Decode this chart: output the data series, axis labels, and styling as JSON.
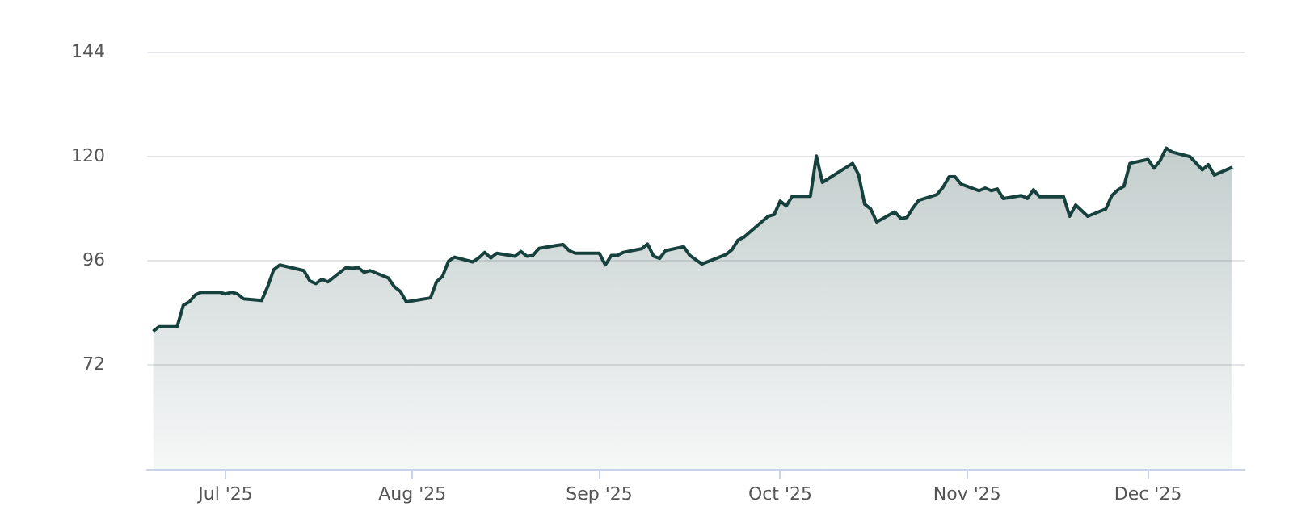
{
  "chart_data": {
    "type": "area",
    "x": [
      "2025-06-19",
      "2025-06-20",
      "2025-06-23",
      "2025-06-24",
      "2025-06-25",
      "2025-06-26",
      "2025-06-27",
      "2025-06-30",
      "2025-07-01",
      "2025-07-02",
      "2025-07-03",
      "2025-07-04",
      "2025-07-07",
      "2025-07-08",
      "2025-07-09",
      "2025-07-10",
      "2025-07-14",
      "2025-07-15",
      "2025-07-16",
      "2025-07-17",
      "2025-07-18",
      "2025-07-21",
      "2025-07-22",
      "2025-07-23",
      "2025-07-24",
      "2025-07-25",
      "2025-07-28",
      "2025-07-29",
      "2025-07-30",
      "2025-07-31",
      "2025-08-04",
      "2025-08-05",
      "2025-08-06",
      "2025-08-07",
      "2025-08-08",
      "2025-08-11",
      "2025-08-12",
      "2025-08-13",
      "2025-08-14",
      "2025-08-15",
      "2025-08-18",
      "2025-08-19",
      "2025-08-20",
      "2025-08-21",
      "2025-08-22",
      "2025-08-25",
      "2025-08-26",
      "2025-08-27",
      "2025-08-28",
      "2025-09-01",
      "2025-09-02",
      "2025-09-03",
      "2025-09-04",
      "2025-09-05",
      "2025-09-08",
      "2025-09-09",
      "2025-09-10",
      "2025-09-11",
      "2025-09-12",
      "2025-09-15",
      "2025-09-16",
      "2025-09-18",
      "2025-09-22",
      "2025-09-23",
      "2025-09-24",
      "2025-09-25",
      "2025-09-29",
      "2025-09-30",
      "2025-10-01",
      "2025-10-02",
      "2025-10-03",
      "2025-10-06",
      "2025-10-07",
      "2025-10-08",
      "2025-10-13",
      "2025-10-14",
      "2025-10-15",
      "2025-10-16",
      "2025-10-17",
      "2025-10-20",
      "2025-10-21",
      "2025-10-22",
      "2025-10-23",
      "2025-10-24",
      "2025-10-27",
      "2025-10-28",
      "2025-10-29",
      "2025-10-30",
      "2025-10-31",
      "2025-11-03",
      "2025-11-04",
      "2025-11-05",
      "2025-11-06",
      "2025-11-07",
      "2025-11-10",
      "2025-11-11",
      "2025-11-12",
      "2025-11-13",
      "2025-11-17",
      "2025-11-18",
      "2025-11-19",
      "2025-11-21",
      "2025-11-24",
      "2025-11-25",
      "2025-11-26",
      "2025-11-27",
      "2025-11-28",
      "2025-12-01",
      "2025-12-02",
      "2025-12-03",
      "2025-12-04",
      "2025-12-05",
      "2025-12-08",
      "2025-12-10",
      "2025-12-11",
      "2025-12-12",
      "2025-12-15"
    ],
    "series": [
      {
        "color": "#17413d",
        "values": [
          79.8,
          80.9,
          80.9,
          85.8,
          86.6,
          88.2,
          88.8,
          88.8,
          88.4,
          88.8,
          88.4,
          87.3,
          86.9,
          90.1,
          94.0,
          95.1,
          93.8,
          91.4,
          90.8,
          91.8,
          91.2,
          94.5,
          94.3,
          94.5,
          93.4,
          93.8,
          92.1,
          90.1,
          89.0,
          86.6,
          87.5,
          91.2,
          92.5,
          96.0,
          96.9,
          95.8,
          96.7,
          98.0,
          96.7,
          97.8,
          97.1,
          98.2,
          97.1,
          97.3,
          98.9,
          99.6,
          99.8,
          98.4,
          97.8,
          97.8,
          95.1,
          97.3,
          97.3,
          98.0,
          98.8,
          99.9,
          97.1,
          96.6,
          98.4,
          99.3,
          97.3,
          95.3,
          97.5,
          98.6,
          100.8,
          101.5,
          106.3,
          106.7,
          109.8,
          108.7,
          110.9,
          110.9,
          120.2,
          114.1,
          118.5,
          115.9,
          109.1,
          108.0,
          105.0,
          107.3,
          105.8,
          106.0,
          108.2,
          110.0,
          111.3,
          113.0,
          115.4,
          115.4,
          113.7,
          112.2,
          112.8,
          112.2,
          112.6,
          110.4,
          111.1,
          110.4,
          112.4,
          110.8,
          110.8,
          106.3,
          108.9,
          106.3,
          108.0,
          111.1,
          112.4,
          113.2,
          118.5,
          119.4,
          117.4,
          119.1,
          122.0,
          121.1,
          120.0,
          117.0,
          118.2,
          115.8,
          117.6
        ]
      }
    ],
    "xlim": [
      "2025-06-18",
      "2025-12-17"
    ],
    "xticks": [
      {
        "value": "2025-07-01",
        "label": "Jul '25"
      },
      {
        "value": "2025-08-01",
        "label": "Aug '25"
      },
      {
        "value": "2025-09-01",
        "label": "Sep '25"
      },
      {
        "value": "2025-10-01",
        "label": "Oct '25"
      },
      {
        "value": "2025-11-01",
        "label": "Nov '25"
      },
      {
        "value": "2025-12-01",
        "label": "Dec '25"
      }
    ],
    "ylim": [
      48,
      144
    ],
    "yticks": [
      72,
      96,
      120,
      144
    ],
    "grid": "y",
    "legend": false,
    "marker": "none",
    "line_style": "solid"
  }
}
